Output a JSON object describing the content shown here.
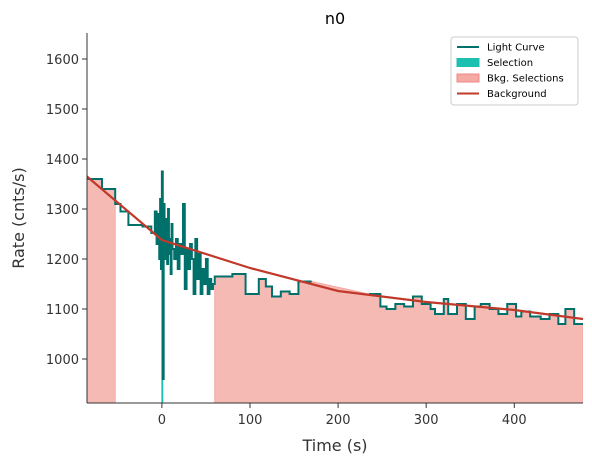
{
  "chart_data": {
    "type": "step",
    "title": "n0",
    "xlabel": "Time (s)",
    "ylabel": "Rate (cnts/s)",
    "xlim": [
      -85,
      478
    ],
    "ylim": [
      912,
      1652
    ],
    "xticks": [
      0,
      100,
      200,
      300,
      400
    ],
    "yticks": [
      1000,
      1100,
      1200,
      1300,
      1400,
      1500,
      1600
    ],
    "legend": "upper right",
    "series": [
      {
        "name": "Light Curve",
        "color": "#00706b",
        "x": [
          -85,
          -68,
          -53,
          -47,
          -38,
          -22,
          -12,
          -8,
          -6,
          -4,
          -3,
          -2,
          -1,
          0,
          1,
          2,
          3,
          4,
          5,
          6,
          7,
          8,
          9,
          10,
          11,
          12,
          14,
          16,
          18,
          20,
          22,
          24,
          26,
          28,
          30,
          32,
          34,
          36,
          38,
          40,
          42,
          44,
          46,
          48,
          50,
          52,
          54,
          56,
          58,
          60,
          80,
          95,
          110,
          118,
          125,
          135,
          145,
          155,
          170,
          235,
          248,
          255,
          265,
          275,
          285,
          295,
          305,
          310,
          320,
          325,
          335,
          345,
          355,
          362,
          372,
          382,
          392,
          402,
          408,
          418,
          430,
          440,
          450,
          458,
          468
        ],
        "values": [
          1360,
          1340,
          1310,
          1295,
          1268,
          1265,
          1252,
          1295,
          1230,
          1290,
          1200,
          1320,
          1180,
          1375,
          960,
          1310,
          1200,
          1280,
          1240,
          1190,
          1300,
          1210,
          1240,
          1170,
          1270,
          1220,
          1200,
          1240,
          1180,
          1230,
          1210,
          1310,
          1140,
          1220,
          1180,
          1230,
          1200,
          1130,
          1240,
          1160,
          1210,
          1130,
          1180,
          1150,
          1200,
          1130,
          1160,
          1140,
          1150,
          1165,
          1170,
          1130,
          1160,
          1145,
          1125,
          1135,
          1130,
          1155,
          null,
          1130,
          1105,
          1100,
          1110,
          1105,
          1125,
          1110,
          1100,
          1090,
          1120,
          1090,
          1110,
          1080,
          1105,
          1110,
          1100,
          1090,
          1110,
          1085,
          1095,
          1085,
          1080,
          1090,
          1070,
          1100,
          1070
        ]
      },
      {
        "name": "Selection",
        "color": "#1cc0b0",
        "ranges": [
          [
            0,
            1
          ]
        ]
      },
      {
        "name": "Bkg. Selections",
        "color": "#f4a9a2",
        "ranges": [
          [
            -85,
            -53
          ],
          [
            60,
            478
          ]
        ]
      },
      {
        "name": "Background",
        "color": "#c0392b",
        "x": [
          -85,
          0,
          100,
          200,
          300,
          400,
          478
        ],
        "values": [
          1365,
          1238,
          1182,
          1136,
          1114,
          1098,
          1080
        ]
      }
    ]
  }
}
